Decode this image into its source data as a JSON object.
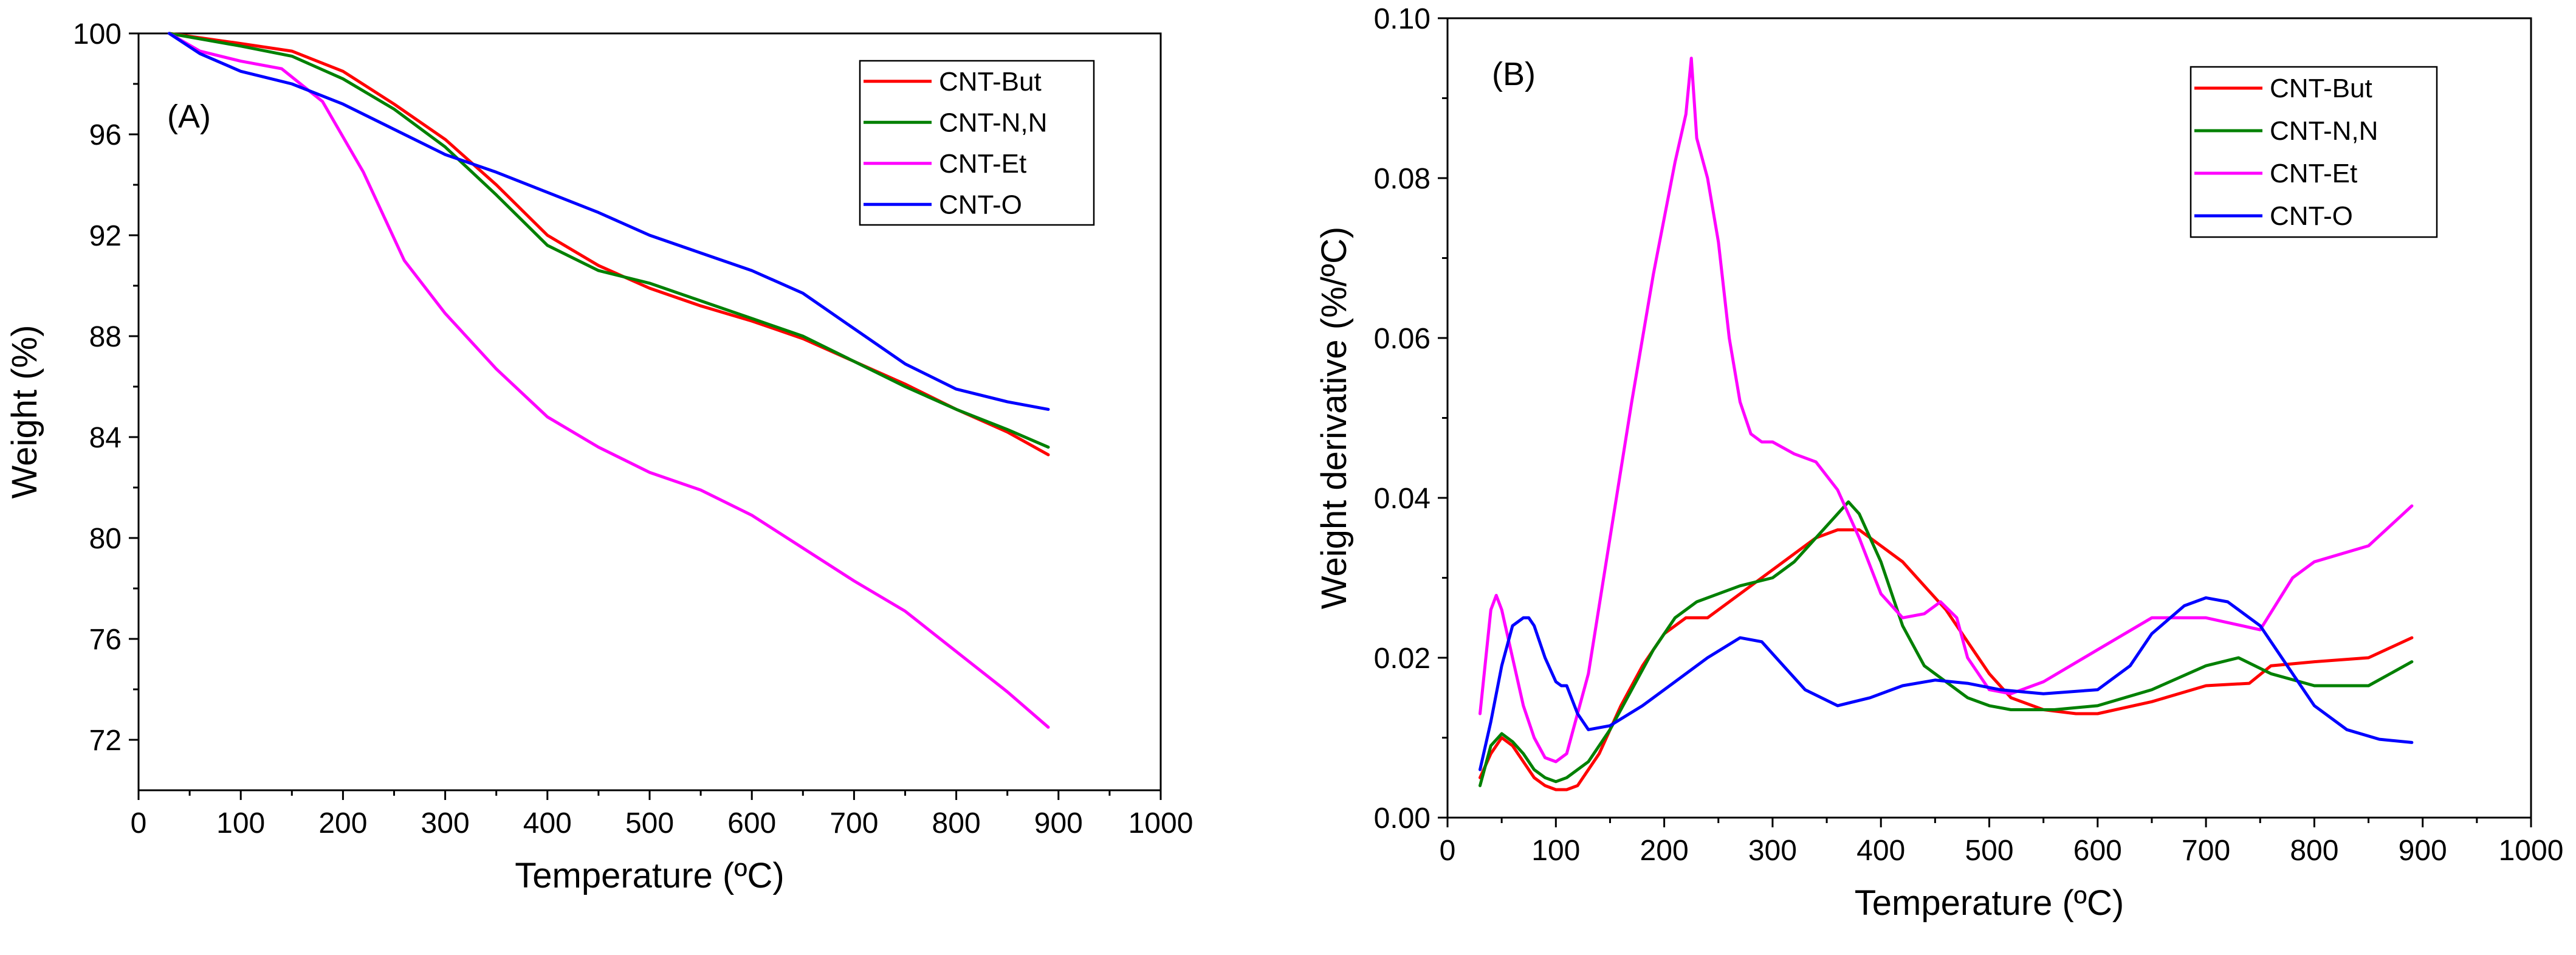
{
  "chart_data": [
    {
      "type": "line",
      "panel_label": "(A)",
      "xlabel": "Temperature (ºC)",
      "ylabel": "Weight (%)",
      "xlim": [
        0,
        1000
      ],
      "ylim": [
        70,
        100
      ],
      "xticks": [
        0,
        100,
        200,
        300,
        400,
        500,
        600,
        700,
        800,
        900,
        1000
      ],
      "yticks": [
        72,
        76,
        80,
        84,
        88,
        92,
        96,
        100
      ],
      "legend_position": "top-right",
      "series": [
        {
          "name": "CNT-But",
          "color": "#ff0000",
          "x": [
            30,
            100,
            150,
            200,
            250,
            300,
            350,
            400,
            450,
            500,
            550,
            600,
            650,
            700,
            750,
            800,
            850,
            890
          ],
          "y": [
            100,
            99.6,
            99.3,
            98.5,
            97.2,
            95.8,
            94.0,
            92.0,
            90.8,
            89.9,
            89.2,
            88.6,
            87.9,
            87.0,
            86.1,
            85.1,
            84.2,
            83.3
          ]
        },
        {
          "name": "CNT-N,N",
          "color": "#008000",
          "x": [
            30,
            100,
            150,
            200,
            250,
            300,
            350,
            400,
            450,
            500,
            550,
            600,
            650,
            700,
            750,
            800,
            850,
            890
          ],
          "y": [
            100,
            99.5,
            99.1,
            98.2,
            97.0,
            95.5,
            93.6,
            91.6,
            90.6,
            90.1,
            89.4,
            88.7,
            88.0,
            87.0,
            86.0,
            85.1,
            84.3,
            83.6
          ]
        },
        {
          "name": "CNT-Et",
          "color": "#ff00ff",
          "x": [
            30,
            60,
            100,
            140,
            180,
            220,
            260,
            300,
            350,
            400,
            450,
            500,
            550,
            600,
            650,
            700,
            750,
            800,
            850,
            890
          ],
          "y": [
            100,
            99.3,
            98.9,
            98.6,
            97.3,
            94.5,
            91.0,
            88.9,
            86.7,
            84.8,
            83.6,
            82.6,
            81.9,
            80.9,
            79.6,
            78.3,
            77.1,
            75.5,
            73.9,
            72.5
          ]
        },
        {
          "name": "CNT-O",
          "color": "#0000ff",
          "x": [
            30,
            60,
            100,
            150,
            200,
            250,
            300,
            350,
            400,
            450,
            500,
            550,
            600,
            650,
            700,
            750,
            800,
            850,
            890
          ],
          "y": [
            100,
            99.2,
            98.5,
            98.0,
            97.2,
            96.2,
            95.2,
            94.5,
            93.7,
            92.9,
            92.0,
            91.3,
            90.6,
            89.7,
            88.3,
            86.9,
            85.9,
            85.4,
            85.1
          ]
        }
      ]
    },
    {
      "type": "line",
      "panel_label": "(B)",
      "xlabel": "Temperature (ºC)",
      "ylabel": "Weight derivative (%/ºC)",
      "xlim": [
        0,
        1000
      ],
      "ylim": [
        0,
        0.1
      ],
      "xticks": [
        0,
        100,
        200,
        300,
        400,
        500,
        600,
        700,
        800,
        900,
        1000
      ],
      "yticks": [
        0.0,
        0.02,
        0.04,
        0.06,
        0.08,
        0.1
      ],
      "ytick_labels": [
        "0.00",
        "0.02",
        "0.04",
        "0.06",
        "0.08",
        "0.10"
      ],
      "legend_position": "top-right",
      "series": [
        {
          "name": "CNT-But",
          "color": "#ff0000",
          "x": [
            30,
            40,
            50,
            60,
            70,
            80,
            90,
            100,
            110,
            120,
            140,
            160,
            180,
            200,
            220,
            240,
            260,
            280,
            300,
            320,
            340,
            360,
            380,
            400,
            420,
            440,
            460,
            480,
            500,
            520,
            550,
            580,
            600,
            650,
            700,
            740,
            760,
            800,
            850,
            890
          ],
          "y": [
            0.005,
            0.008,
            0.01,
            0.009,
            0.007,
            0.005,
            0.004,
            0.0035,
            0.0035,
            0.004,
            0.008,
            0.014,
            0.019,
            0.023,
            0.025,
            0.025,
            0.027,
            0.029,
            0.031,
            0.033,
            0.035,
            0.036,
            0.036,
            0.034,
            0.032,
            0.029,
            0.026,
            0.022,
            0.018,
            0.015,
            0.0135,
            0.013,
            0.013,
            0.0145,
            0.0165,
            0.0168,
            0.019,
            0.0195,
            0.02,
            0.0225
          ]
        },
        {
          "name": "CNT-N,N",
          "color": "#008000",
          "x": [
            30,
            40,
            50,
            60,
            70,
            80,
            90,
            100,
            110,
            130,
            150,
            170,
            190,
            210,
            230,
            250,
            270,
            300,
            320,
            340,
            360,
            370,
            380,
            400,
            420,
            440,
            460,
            480,
            500,
            520,
            560,
            600,
            650,
            700,
            730,
            760,
            800,
            850,
            890
          ],
          "y": [
            0.004,
            0.009,
            0.0105,
            0.0095,
            0.008,
            0.006,
            0.005,
            0.0045,
            0.005,
            0.007,
            0.011,
            0.016,
            0.021,
            0.025,
            0.027,
            0.028,
            0.029,
            0.03,
            0.032,
            0.035,
            0.038,
            0.0395,
            0.038,
            0.032,
            0.024,
            0.019,
            0.017,
            0.015,
            0.014,
            0.0135,
            0.0135,
            0.014,
            0.016,
            0.019,
            0.02,
            0.018,
            0.0165,
            0.0165,
            0.0195
          ]
        },
        {
          "name": "CNT-Et",
          "color": "#ff00ff",
          "x": [
            30,
            40,
            45,
            50,
            60,
            70,
            80,
            90,
            100,
            110,
            130,
            150,
            170,
            190,
            210,
            220,
            225,
            230,
            240,
            250,
            260,
            270,
            280,
            290,
            300,
            320,
            340,
            360,
            380,
            400,
            420,
            440,
            455,
            470,
            480,
            500,
            520,
            550,
            600,
            650,
            700,
            750,
            780,
            800,
            850,
            890
          ],
          "y": [
            0.013,
            0.026,
            0.0278,
            0.026,
            0.02,
            0.014,
            0.01,
            0.0075,
            0.007,
            0.008,
            0.018,
            0.035,
            0.052,
            0.068,
            0.082,
            0.088,
            0.095,
            0.085,
            0.08,
            0.072,
            0.06,
            0.052,
            0.048,
            0.047,
            0.047,
            0.0455,
            0.0445,
            0.041,
            0.035,
            0.028,
            0.025,
            0.0255,
            0.027,
            0.025,
            0.02,
            0.016,
            0.0155,
            0.017,
            0.021,
            0.025,
            0.025,
            0.0235,
            0.03,
            0.032,
            0.034,
            0.039
          ]
        },
        {
          "name": "CNT-O",
          "color": "#0000ff",
          "x": [
            30,
            40,
            50,
            60,
            70,
            75,
            80,
            90,
            100,
            105,
            110,
            120,
            130,
            150,
            180,
            210,
            240,
            270,
            290,
            310,
            330,
            360,
            390,
            420,
            450,
            480,
            510,
            550,
            600,
            630,
            650,
            680,
            700,
            720,
            750,
            780,
            800,
            830,
            860,
            890
          ],
          "y": [
            0.006,
            0.012,
            0.019,
            0.024,
            0.025,
            0.025,
            0.024,
            0.02,
            0.017,
            0.0165,
            0.0165,
            0.013,
            0.011,
            0.0115,
            0.014,
            0.017,
            0.02,
            0.0225,
            0.022,
            0.019,
            0.016,
            0.014,
            0.015,
            0.0165,
            0.0172,
            0.0168,
            0.016,
            0.0155,
            0.016,
            0.019,
            0.023,
            0.0265,
            0.0275,
            0.027,
            0.024,
            0.018,
            0.014,
            0.011,
            0.0098,
            0.0094
          ]
        }
      ]
    }
  ]
}
